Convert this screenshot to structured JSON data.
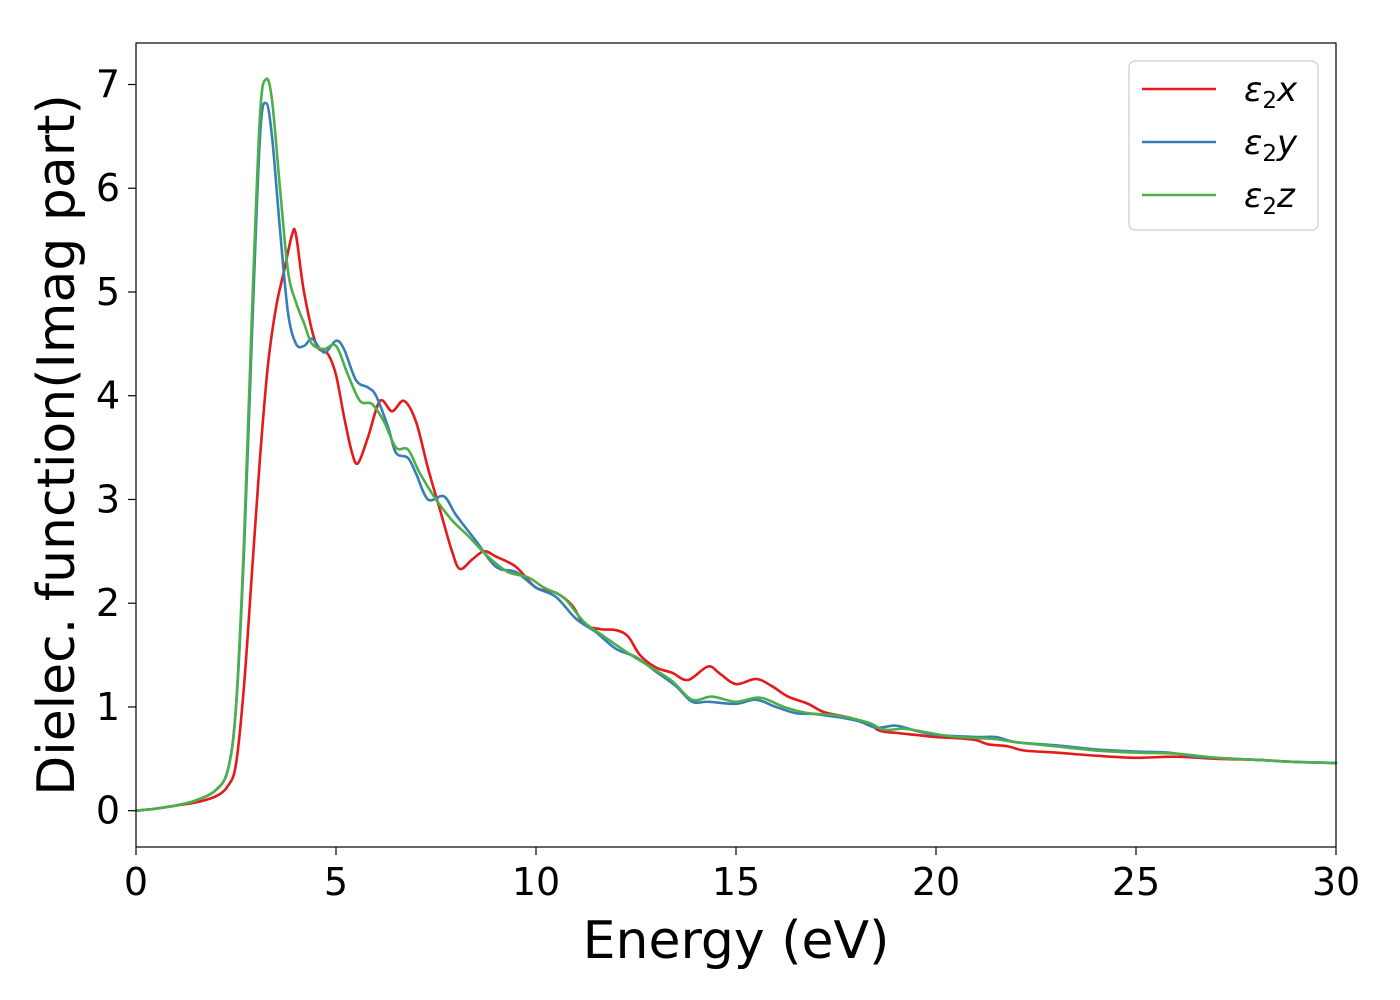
{
  "chart_data": {
    "type": "line",
    "xlabel": "Energy (eV)",
    "ylabel": "Dielec. function(Imag part)",
    "xlim": [
      0,
      30
    ],
    "ylim": [
      -0.35,
      7.4
    ],
    "xticks": [
      0,
      5,
      10,
      15,
      20,
      25,
      30
    ],
    "yticks": [
      0,
      1,
      2,
      3,
      4,
      5,
      6,
      7
    ],
    "grid": false,
    "legend_position": "top-right",
    "series": [
      {
        "name": "ε2x",
        "symbol": "ε",
        "sub": "2",
        "axis": "x",
        "color": "#e41a1c",
        "points": [
          [
            0,
            0
          ],
          [
            0.5,
            0.02
          ],
          [
            1,
            0.05
          ],
          [
            1.5,
            0.08
          ],
          [
            2,
            0.14
          ],
          [
            2.3,
            0.24
          ],
          [
            2.5,
            0.45
          ],
          [
            2.7,
            1.2
          ],
          [
            2.9,
            2.3
          ],
          [
            3.1,
            3.4
          ],
          [
            3.3,
            4.3
          ],
          [
            3.5,
            4.85
          ],
          [
            3.7,
            5.2
          ],
          [
            3.9,
            5.55
          ],
          [
            4.0,
            5.55
          ],
          [
            4.2,
            5.0
          ],
          [
            4.5,
            4.5
          ],
          [
            4.8,
            4.4
          ],
          [
            5.0,
            4.2
          ],
          [
            5.2,
            3.8
          ],
          [
            5.4,
            3.45
          ],
          [
            5.55,
            3.35
          ],
          [
            5.8,
            3.6
          ],
          [
            6.1,
            3.95
          ],
          [
            6.4,
            3.85
          ],
          [
            6.7,
            3.95
          ],
          [
            7.0,
            3.75
          ],
          [
            7.3,
            3.3
          ],
          [
            7.6,
            2.9
          ],
          [
            7.9,
            2.5
          ],
          [
            8.1,
            2.33
          ],
          [
            8.4,
            2.42
          ],
          [
            8.7,
            2.5
          ],
          [
            9.0,
            2.45
          ],
          [
            9.5,
            2.35
          ],
          [
            10.0,
            2.15
          ],
          [
            10.5,
            2.1
          ],
          [
            10.9,
            1.98
          ],
          [
            11.2,
            1.8
          ],
          [
            11.6,
            1.75
          ],
          [
            12.0,
            1.74
          ],
          [
            12.3,
            1.68
          ],
          [
            12.6,
            1.5
          ],
          [
            13.0,
            1.38
          ],
          [
            13.4,
            1.33
          ],
          [
            13.8,
            1.26
          ],
          [
            14.3,
            1.39
          ],
          [
            14.6,
            1.32
          ],
          [
            15.0,
            1.22
          ],
          [
            15.5,
            1.27
          ],
          [
            15.9,
            1.2
          ],
          [
            16.3,
            1.1
          ],
          [
            16.8,
            1.03
          ],
          [
            17.2,
            0.95
          ],
          [
            17.8,
            0.9
          ],
          [
            18.3,
            0.84
          ],
          [
            18.6,
            0.77
          ],
          [
            19.0,
            0.75
          ],
          [
            19.5,
            0.73
          ],
          [
            20.0,
            0.71
          ],
          [
            20.5,
            0.7
          ],
          [
            21.0,
            0.68
          ],
          [
            21.3,
            0.64
          ],
          [
            21.8,
            0.62
          ],
          [
            22.2,
            0.58
          ],
          [
            23.0,
            0.56
          ],
          [
            24.0,
            0.53
          ],
          [
            25.0,
            0.51
          ],
          [
            26.0,
            0.52
          ],
          [
            27.0,
            0.5
          ],
          [
            28.0,
            0.49
          ],
          [
            29.0,
            0.47
          ],
          [
            30.0,
            0.46
          ]
        ]
      },
      {
        "name": "ε2y",
        "symbol": "ε",
        "sub": "2",
        "axis": "y",
        "color": "#377eb8",
        "points": [
          [
            0,
            0
          ],
          [
            0.5,
            0.02
          ],
          [
            1,
            0.05
          ],
          [
            1.5,
            0.1
          ],
          [
            2,
            0.2
          ],
          [
            2.3,
            0.4
          ],
          [
            2.5,
            1.0
          ],
          [
            2.7,
            2.5
          ],
          [
            2.9,
            4.6
          ],
          [
            3.1,
            6.5
          ],
          [
            3.25,
            6.82
          ],
          [
            3.4,
            6.5
          ],
          [
            3.6,
            5.6
          ],
          [
            3.8,
            4.8
          ],
          [
            4.0,
            4.5
          ],
          [
            4.2,
            4.48
          ],
          [
            4.4,
            4.55
          ],
          [
            4.6,
            4.45
          ],
          [
            4.75,
            4.42
          ],
          [
            5.0,
            4.53
          ],
          [
            5.2,
            4.45
          ],
          [
            5.5,
            4.15
          ],
          [
            5.8,
            4.08
          ],
          [
            6.0,
            4.0
          ],
          [
            6.3,
            3.7
          ],
          [
            6.5,
            3.45
          ],
          [
            6.8,
            3.4
          ],
          [
            7.0,
            3.25
          ],
          [
            7.3,
            3.0
          ],
          [
            7.7,
            3.03
          ],
          [
            8.0,
            2.85
          ],
          [
            8.5,
            2.6
          ],
          [
            9.0,
            2.35
          ],
          [
            9.5,
            2.3
          ],
          [
            10.0,
            2.15
          ],
          [
            10.5,
            2.06
          ],
          [
            11.0,
            1.85
          ],
          [
            11.5,
            1.72
          ],
          [
            12.0,
            1.56
          ],
          [
            12.5,
            1.48
          ],
          [
            13.0,
            1.34
          ],
          [
            13.5,
            1.2
          ],
          [
            13.9,
            1.05
          ],
          [
            14.3,
            1.05
          ],
          [
            15.0,
            1.03
          ],
          [
            15.5,
            1.07
          ],
          [
            16.0,
            1.0
          ],
          [
            16.5,
            0.94
          ],
          [
            17.0,
            0.93
          ],
          [
            18.0,
            0.87
          ],
          [
            18.5,
            0.8
          ],
          [
            19.0,
            0.82
          ],
          [
            19.5,
            0.77
          ],
          [
            20.0,
            0.73
          ],
          [
            21.0,
            0.71
          ],
          [
            21.5,
            0.71
          ],
          [
            22.0,
            0.66
          ],
          [
            23.0,
            0.63
          ],
          [
            24.0,
            0.59
          ],
          [
            25.0,
            0.57
          ],
          [
            25.8,
            0.56
          ],
          [
            26.5,
            0.52
          ],
          [
            27.0,
            0.51
          ],
          [
            28.0,
            0.49
          ],
          [
            29.0,
            0.47
          ],
          [
            30.0,
            0.46
          ]
        ]
      },
      {
        "name": "ε2z",
        "symbol": "ε",
        "sub": "2",
        "axis": "z",
        "color": "#4daf4a",
        "points": [
          [
            0,
            0
          ],
          [
            0.5,
            0.02
          ],
          [
            1,
            0.05
          ],
          [
            1.5,
            0.1
          ],
          [
            2,
            0.2
          ],
          [
            2.3,
            0.4
          ],
          [
            2.5,
            1.0
          ],
          [
            2.7,
            2.6
          ],
          [
            2.9,
            4.8
          ],
          [
            3.1,
            6.7
          ],
          [
            3.25,
            7.05
          ],
          [
            3.4,
            6.85
          ],
          [
            3.6,
            6.0
          ],
          [
            3.8,
            5.2
          ],
          [
            4.0,
            4.9
          ],
          [
            4.2,
            4.7
          ],
          [
            4.4,
            4.5
          ],
          [
            4.7,
            4.45
          ],
          [
            5.0,
            4.48
          ],
          [
            5.3,
            4.2
          ],
          [
            5.6,
            3.95
          ],
          [
            5.9,
            3.92
          ],
          [
            6.2,
            3.75
          ],
          [
            6.5,
            3.5
          ],
          [
            6.8,
            3.48
          ],
          [
            7.1,
            3.25
          ],
          [
            7.5,
            3.0
          ],
          [
            7.9,
            2.8
          ],
          [
            8.3,
            2.65
          ],
          [
            8.8,
            2.45
          ],
          [
            9.3,
            2.3
          ],
          [
            9.8,
            2.25
          ],
          [
            10.2,
            2.15
          ],
          [
            10.7,
            2.05
          ],
          [
            11.2,
            1.82
          ],
          [
            11.7,
            1.68
          ],
          [
            12.3,
            1.52
          ],
          [
            12.8,
            1.4
          ],
          [
            13.4,
            1.25
          ],
          [
            13.9,
            1.07
          ],
          [
            14.4,
            1.1
          ],
          [
            15.0,
            1.05
          ],
          [
            15.6,
            1.09
          ],
          [
            16.2,
            1.0
          ],
          [
            16.8,
            0.94
          ],
          [
            17.5,
            0.92
          ],
          [
            18.3,
            0.85
          ],
          [
            18.7,
            0.78
          ],
          [
            19.2,
            0.79
          ],
          [
            19.7,
            0.76
          ],
          [
            20.3,
            0.72
          ],
          [
            21.0,
            0.7
          ],
          [
            21.5,
            0.69
          ],
          [
            22.0,
            0.66
          ],
          [
            23.0,
            0.62
          ],
          [
            24.0,
            0.58
          ],
          [
            25.0,
            0.56
          ],
          [
            26.0,
            0.55
          ],
          [
            27.0,
            0.51
          ],
          [
            28.0,
            0.49
          ],
          [
            29.0,
            0.47
          ],
          [
            30.0,
            0.46
          ]
        ]
      }
    ]
  }
}
